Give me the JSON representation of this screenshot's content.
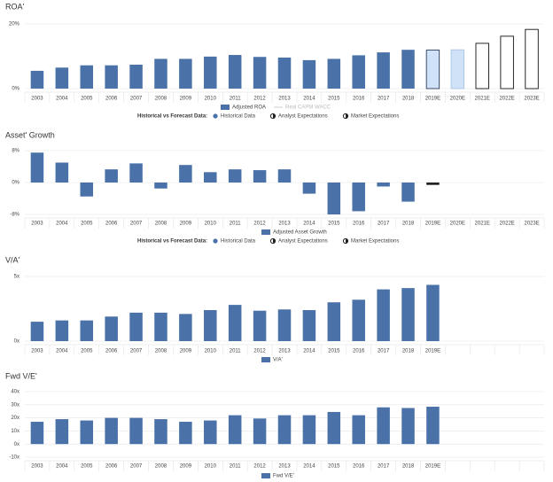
{
  "chart_data": [
    {
      "type": "bar",
      "title": "ROA'",
      "categories": [
        "2003",
        "2004",
        "2005",
        "2006",
        "2007",
        "2008",
        "2009",
        "2010",
        "2011",
        "2012",
        "2013",
        "2014",
        "2015",
        "2016",
        "2017",
        "2018",
        "2019E",
        "2020E",
        "2021E",
        "2022E",
        "2023E"
      ],
      "series": [
        {
          "name": "Adjusted ROA",
          "color": "#4a72a8",
          "values": [
            5.5,
            6.5,
            7.2,
            7.2,
            7.4,
            9.2,
            9.2,
            9.9,
            10.4,
            9.8,
            9.6,
            8.8,
            9.2,
            10.3,
            11.2,
            12.0,
            11.9,
            12.0,
            14.0,
            16.2,
            18.3
          ]
        }
      ],
      "bar_fills": [
        "#4a72a8",
        "#4a72a8",
        "#4a72a8",
        "#4a72a8",
        "#4a72a8",
        "#4a72a8",
        "#4a72a8",
        "#4a72a8",
        "#4a72a8",
        "#4a72a8",
        "#4a72a8",
        "#4a72a8",
        "#4a72a8",
        "#4a72a8",
        "#4a72a8",
        "#4a72a8",
        "#cfe2f7",
        "#cfe2f7",
        "#ffffff",
        "#ffffff",
        "#ffffff"
      ],
      "bar_strokes": [
        "none",
        "none",
        "none",
        "none",
        "none",
        "none",
        "none",
        "none",
        "none",
        "none",
        "none",
        "none",
        "none",
        "none",
        "none",
        "none",
        "#2b3a55",
        "#a8c4e4",
        "#111111",
        "#111111",
        "#111111"
      ],
      "line_legend": {
        "name": "Real CAPM WACC",
        "color": "#cccccc"
      },
      "forecast_legend": {
        "title": "Historical vs Forecast Data:",
        "items": [
          {
            "name": "Historical Data",
            "color": "#4a72a8"
          },
          {
            "name": "Analyst Expectations",
            "color": "#ffffff"
          },
          {
            "name": "Market Expectations",
            "color": "#ffffff"
          }
        ]
      },
      "ylim": [
        0,
        20
      ],
      "yticks": [
        {
          "value": 0,
          "label": "0%"
        },
        {
          "value": 20,
          "label": "20%"
        }
      ],
      "grid": true
    },
    {
      "type": "bar",
      "title": "Asset' Growth",
      "categories": [
        "2003",
        "2004",
        "2005",
        "2006",
        "2007",
        "2008",
        "2009",
        "2010",
        "2011",
        "2012",
        "2013",
        "2014",
        "2015",
        "2016",
        "2017",
        "2018",
        "2019E",
        "2020E",
        "2021E",
        "2022E",
        "2023E"
      ],
      "series": [
        {
          "name": "Adjusted Asset Growth",
          "color": "#4a72a8",
          "values": [
            7.5,
            5.0,
            -3.5,
            3.3,
            4.8,
            -1.5,
            4.4,
            2.6,
            3.3,
            3.1,
            3.3,
            -2.8,
            -8.0,
            -7.2,
            -1.0,
            -4.8,
            -0.6,
            null,
            null,
            null,
            null
          ]
        }
      ],
      "bar_fills": [
        "#4a72a8",
        "#4a72a8",
        "#4a72a8",
        "#4a72a8",
        "#4a72a8",
        "#4a72a8",
        "#4a72a8",
        "#4a72a8",
        "#4a72a8",
        "#4a72a8",
        "#4a72a8",
        "#4a72a8",
        "#4a72a8",
        "#4a72a8",
        "#4a72a8",
        "#4a72a8",
        "#222222",
        "#ffffff",
        "#ffffff",
        "#ffffff",
        "#ffffff"
      ],
      "forecast_legend": {
        "title": "Historical vs Forecast Data:",
        "items": [
          {
            "name": "Historical Data",
            "color": "#4a72a8"
          },
          {
            "name": "Analyst Expectations",
            "color": "#ffffff"
          },
          {
            "name": "Market Expectations",
            "color": "#ffffff"
          }
        ]
      },
      "ylim": [
        -8,
        8
      ],
      "yticks": [
        {
          "value": -8,
          "label": "-8%"
        },
        {
          "value": 0,
          "label": "0%"
        },
        {
          "value": 8,
          "label": "8%"
        }
      ],
      "grid": true
    },
    {
      "type": "bar",
      "title": "V/A'",
      "categories": [
        "2003",
        "2004",
        "2005",
        "2006",
        "2007",
        "2008",
        "2009",
        "2010",
        "2011",
        "2012",
        "2013",
        "2014",
        "2015",
        "2016",
        "2017",
        "2018",
        "2019E",
        null,
        null,
        null,
        null
      ],
      "series": [
        {
          "name": "V/A'",
          "color": "#4a72a8",
          "values": [
            1.5,
            1.6,
            1.6,
            1.9,
            2.2,
            2.2,
            2.1,
            2.4,
            2.8,
            2.35,
            2.45,
            2.4,
            3.0,
            3.2,
            4.0,
            4.1,
            4.35,
            null,
            null,
            null,
            null
          ]
        }
      ],
      "ylim": [
        0,
        5
      ],
      "yticks": [
        {
          "value": 0,
          "label": "0x"
        },
        {
          "value": 5,
          "label": "5x"
        }
      ],
      "grid": true
    },
    {
      "type": "bar",
      "title": "Fwd V/E'",
      "categories": [
        "2003",
        "2004",
        "2005",
        "2006",
        "2007",
        "2008",
        "2009",
        "2010",
        "2011",
        "2012",
        "2013",
        "2014",
        "2015",
        "2016",
        "2017",
        "2018",
        "2019E",
        null,
        null,
        null,
        null
      ],
      "series": [
        {
          "name": "Fwd V/E'",
          "color": "#4a72a8",
          "values": [
            17,
            19,
            18,
            20,
            20,
            19,
            17,
            18,
            22,
            19.5,
            22,
            22,
            24.5,
            22,
            28,
            27.5,
            28.5,
            null,
            null,
            null,
            null
          ]
        }
      ],
      "ylim": [
        -10,
        40
      ],
      "yticks": [
        {
          "value": -10,
          "label": "-10x"
        },
        {
          "value": 0,
          "label": "0x"
        },
        {
          "value": 10,
          "label": "10x"
        },
        {
          "value": 20,
          "label": "20x"
        },
        {
          "value": 30,
          "label": "30x"
        },
        {
          "value": 40,
          "label": "40x"
        }
      ],
      "grid": true
    }
  ]
}
